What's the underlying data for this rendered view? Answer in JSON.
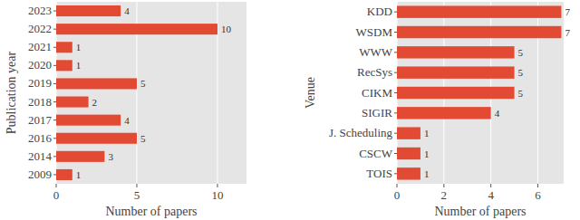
{
  "chart_data": [
    {
      "type": "bar",
      "orientation": "horizontal",
      "x_label": "Number of papers",
      "y_label": "Publication year",
      "categories": [
        "2023",
        "2022",
        "2021",
        "2020",
        "2019",
        "2018",
        "2017",
        "2016",
        "2014",
        "2009"
      ],
      "values": [
        4,
        10,
        1,
        1,
        5,
        2,
        4,
        5,
        3,
        1
      ],
      "color": "#e24a33",
      "xlim": [
        0,
        11.8
      ],
      "xticks": [
        0,
        5,
        10
      ],
      "grid": true,
      "data_labels": true
    },
    {
      "type": "bar",
      "orientation": "horizontal",
      "x_label": "Number of papers",
      "y_label": "Venue",
      "categories": [
        "KDD",
        "WSDM",
        "WWW",
        "RecSys",
        "CIKM",
        "SIGIR",
        "J. Scheduling",
        "CSCW",
        "TOIS"
      ],
      "values": [
        7,
        7,
        5,
        5,
        5,
        4,
        1,
        1,
        1
      ],
      "color": "#e24a33",
      "xlim": [
        0,
        7.1
      ],
      "xticks": [
        0,
        2,
        4,
        6
      ],
      "grid": true,
      "data_labels": true
    }
  ]
}
